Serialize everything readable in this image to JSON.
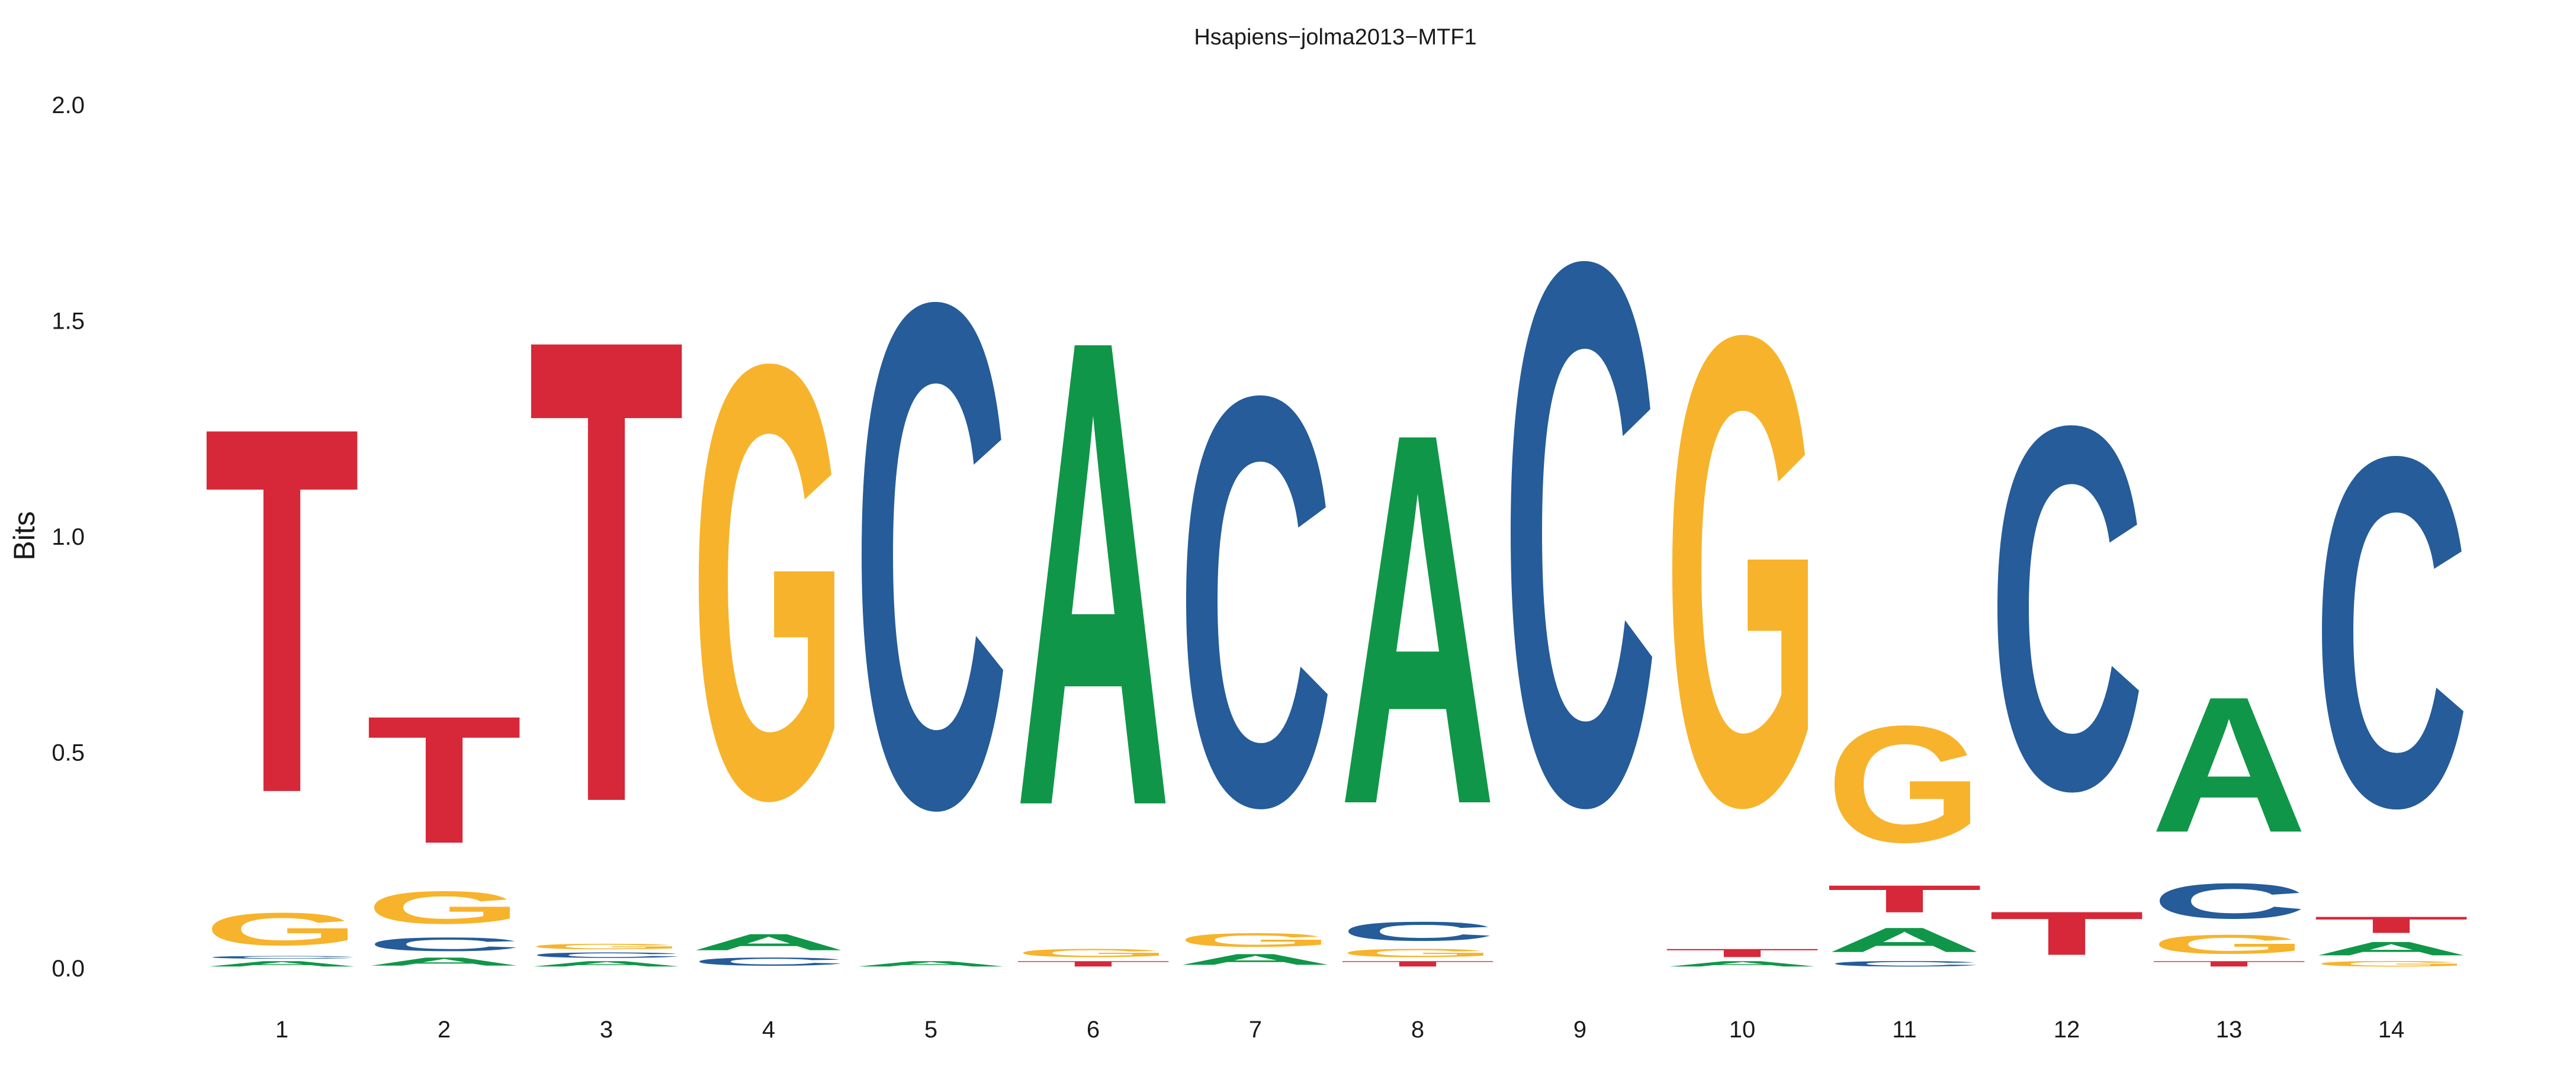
{
  "chart_data": {
    "type": "sequence-logo",
    "title": "Hsapiens−jolma2013−MTF1",
    "xlabel": "",
    "ylabel": "Bits",
    "ylim": [
      0,
      2.0
    ],
    "yticks": [
      "0.0",
      "0.5",
      "1.0",
      "1.5",
      "2.0"
    ],
    "ytick_values": [
      0,
      0.5,
      1.0,
      1.5,
      2.0
    ],
    "grid": false,
    "legend": "none",
    "colors": {
      "A": "#109648",
      "C": "#255C99",
      "G": "#F7B32B",
      "T": "#D62839"
    },
    "positions": [
      {
        "label": "1",
        "stack": [
          [
            "A",
            0.02
          ],
          [
            "C",
            0.01
          ],
          [
            "G",
            0.12
          ],
          [
            "T",
            1.35
          ]
        ]
      },
      {
        "label": "2",
        "stack": [
          [
            "A",
            0.03
          ],
          [
            "C",
            0.05
          ],
          [
            "G",
            0.12
          ],
          [
            "T",
            0.47
          ]
        ]
      },
      {
        "label": "3",
        "stack": [
          [
            "A",
            0.02
          ],
          [
            "C",
            0.02
          ],
          [
            "G",
            0.02
          ],
          [
            "T",
            1.71
          ]
        ]
      },
      {
        "label": "4",
        "stack": [
          [
            "C",
            0.03
          ],
          [
            "A",
            0.06
          ],
          [
            "G",
            1.6
          ]
        ]
      },
      {
        "label": "5",
        "stack": [
          [
            "A",
            0.02
          ],
          [
            "C",
            1.86
          ]
        ]
      },
      {
        "label": "6",
        "stack": [
          [
            "T",
            0.02
          ],
          [
            "G",
            0.03
          ],
          [
            "A",
            1.72
          ]
        ]
      },
      {
        "label": "7",
        "stack": [
          [
            "A",
            0.04
          ],
          [
            "G",
            0.05
          ],
          [
            "C",
            1.51
          ]
        ]
      },
      {
        "label": "8",
        "stack": [
          [
            "T",
            0.02
          ],
          [
            "G",
            0.03
          ],
          [
            "C",
            0.07
          ],
          [
            "A",
            1.37
          ]
        ]
      },
      {
        "label": "9",
        "stack": [
          [
            "C",
            2.0
          ]
        ]
      },
      {
        "label": "10",
        "stack": [
          [
            "A",
            0.02
          ],
          [
            "T",
            0.03
          ],
          [
            "G",
            1.73
          ]
        ]
      },
      {
        "label": "11",
        "stack": [
          [
            "C",
            0.02
          ],
          [
            "A",
            0.09
          ],
          [
            "T",
            0.1
          ],
          [
            "G",
            0.43
          ]
        ]
      },
      {
        "label": "12",
        "stack": [
          [
            "T",
            0.16
          ],
          [
            "C",
            1.34
          ]
        ]
      },
      {
        "label": "13",
        "stack": [
          [
            "T",
            0.02
          ],
          [
            "G",
            0.07
          ],
          [
            "C",
            0.13
          ],
          [
            "A",
            0.5
          ]
        ]
      },
      {
        "label": "14",
        "stack": [
          [
            "G",
            0.02
          ],
          [
            "A",
            0.05
          ],
          [
            "T",
            0.06
          ],
          [
            "C",
            1.29
          ]
        ]
      }
    ]
  }
}
